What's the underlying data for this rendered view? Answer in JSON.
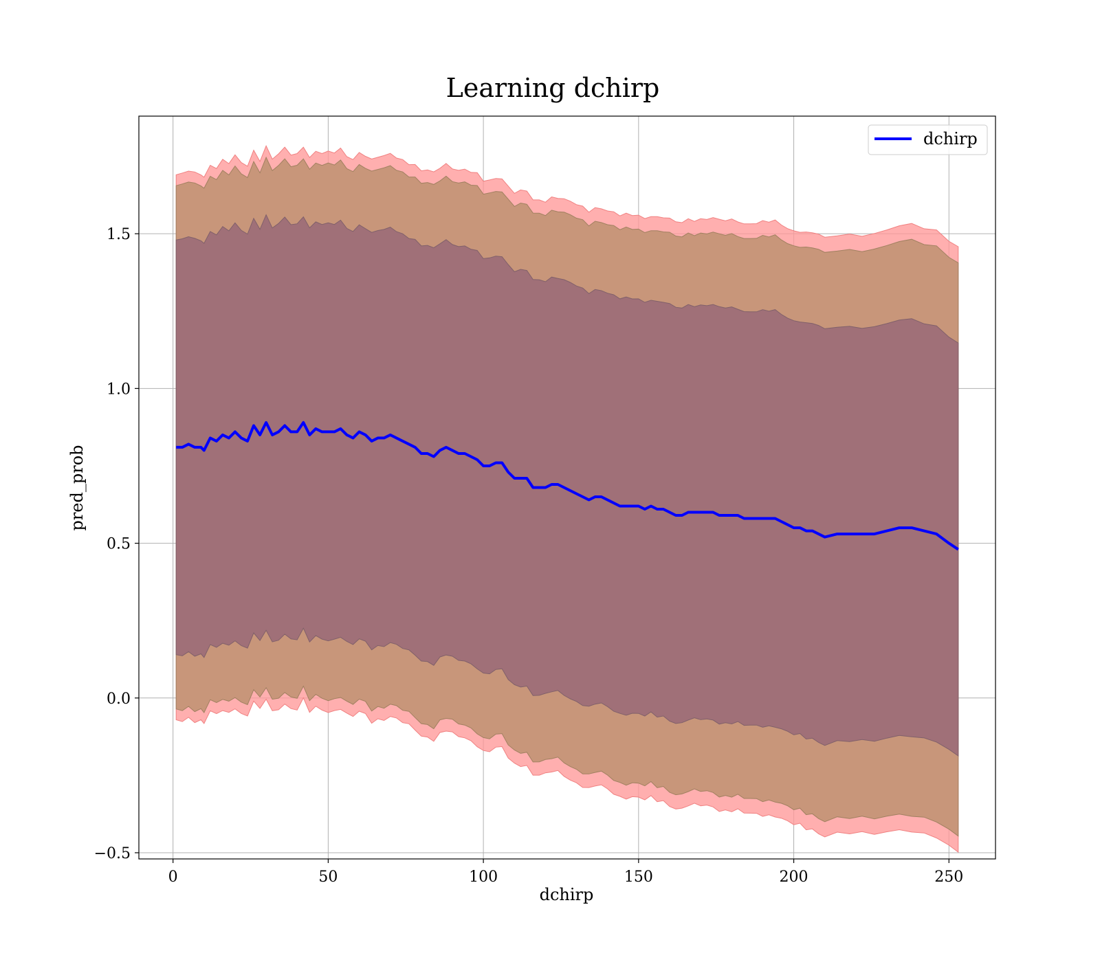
{
  "chart_data": {
    "type": "line",
    "title": "Learning dchirp",
    "xlabel": "dchirp",
    "ylabel": "pred_prob",
    "xlim": [
      -11,
      265
    ],
    "ylim": [
      -0.52,
      1.88
    ],
    "xticks": [
      0,
      50,
      100,
      150,
      200,
      250
    ],
    "xtick_labels": [
      "0",
      "50",
      "100",
      "150",
      "200",
      "250"
    ],
    "yticks": [
      -0.5,
      0.0,
      0.5,
      1.0,
      1.5
    ],
    "ytick_labels": [
      "−0.5",
      "0.0",
      "0.5",
      "1.0",
      "1.5"
    ],
    "grid": true,
    "legend": {
      "position": "top-right",
      "entries": [
        "dchirp"
      ]
    },
    "colors": {
      "line": "#0000ff",
      "band_outer": "#ff9999",
      "band_middle": "#c8967a",
      "band_inner": "#a07078",
      "grid": "#b0b0b0"
    },
    "series": [
      {
        "name": "dchirp",
        "x": [
          1,
          3,
          5,
          7,
          9,
          10,
          12,
          14,
          16,
          18,
          20,
          22,
          24,
          26,
          28,
          30,
          32,
          34,
          36,
          38,
          40,
          42,
          44,
          46,
          48,
          50,
          52,
          54,
          56,
          58,
          60,
          62,
          64,
          66,
          68,
          70,
          72,
          74,
          76,
          78,
          80,
          82,
          84,
          86,
          88,
          90,
          92,
          94,
          96,
          98,
          100,
          102,
          104,
          106,
          108,
          110,
          112,
          114,
          116,
          118,
          120,
          122,
          124,
          126,
          128,
          130,
          132,
          134,
          136,
          138,
          140,
          142,
          144,
          146,
          148,
          150,
          152,
          154,
          156,
          158,
          160,
          162,
          164,
          166,
          168,
          170,
          172,
          174,
          176,
          178,
          180,
          182,
          184,
          186,
          188,
          190,
          192,
          194,
          196,
          198,
          200,
          202,
          204,
          206,
          208,
          210,
          214,
          218,
          222,
          226,
          230,
          234,
          238,
          242,
          246,
          250,
          253
        ],
        "y": [
          0.81,
          0.81,
          0.82,
          0.81,
          0.81,
          0.8,
          0.84,
          0.83,
          0.85,
          0.84,
          0.86,
          0.84,
          0.83,
          0.88,
          0.85,
          0.89,
          0.85,
          0.86,
          0.88,
          0.86,
          0.86,
          0.89,
          0.85,
          0.87,
          0.86,
          0.86,
          0.86,
          0.87,
          0.85,
          0.84,
          0.86,
          0.85,
          0.83,
          0.84,
          0.84,
          0.85,
          0.84,
          0.83,
          0.82,
          0.81,
          0.79,
          0.79,
          0.78,
          0.8,
          0.81,
          0.8,
          0.79,
          0.79,
          0.78,
          0.77,
          0.75,
          0.75,
          0.76,
          0.76,
          0.73,
          0.71,
          0.71,
          0.71,
          0.68,
          0.68,
          0.68,
          0.69,
          0.69,
          0.68,
          0.67,
          0.66,
          0.65,
          0.64,
          0.65,
          0.65,
          0.64,
          0.63,
          0.62,
          0.62,
          0.62,
          0.62,
          0.61,
          0.62,
          0.61,
          0.61,
          0.6,
          0.59,
          0.59,
          0.6,
          0.6,
          0.6,
          0.6,
          0.6,
          0.59,
          0.59,
          0.59,
          0.59,
          0.58,
          0.58,
          0.58,
          0.58,
          0.58,
          0.58,
          0.57,
          0.56,
          0.55,
          0.55,
          0.54,
          0.54,
          0.53,
          0.52,
          0.53,
          0.53,
          0.53,
          0.53,
          0.54,
          0.55,
          0.55,
          0.54,
          0.53,
          0.5,
          0.48
        ]
      }
    ],
    "bands": {
      "inner_halfwidth": [
        0.67,
        0.67,
        0.67,
        0.67,
        0.67,
        0.67,
        0.67,
        0.67,
        0.67,
        0.67,
        0.67,
        0.67,
        0.67,
        0.67,
        0.67,
        0.67,
        0.67,
        0.67,
        0.67,
        0.67,
        0.67,
        0.67,
        0.67,
        0.67,
        0.67,
        0.67,
        0.67,
        0.67,
        0.67,
        0.67,
        0.67,
        0.67,
        0.67,
        0.67,
        0.67,
        0.67,
        0.67,
        0.67,
        0.67,
        0.67,
        0.67,
        0.67,
        0.67,
        0.67,
        0.67,
        0.67,
        0.67,
        0.67,
        0.67,
        0.67,
        0.67,
        0.67,
        0.67,
        0.67,
        0.67,
        0.67,
        0.67,
        0.67,
        0.67,
        0.67,
        0.67,
        0.67,
        0.67,
        0.67,
        0.67,
        0.67,
        0.67,
        0.67,
        0.67,
        0.67,
        0.67,
        0.67,
        0.67,
        0.67,
        0.67,
        0.67,
        0.67,
        0.67,
        0.67,
        0.67,
        0.67,
        0.67,
        0.67,
        0.67,
        0.67,
        0.67,
        0.67,
        0.67,
        0.67,
        0.67,
        0.67,
        0.67,
        0.67,
        0.67,
        0.67,
        0.67,
        0.67,
        0.67,
        0.67,
        0.67,
        0.67,
        0.67,
        0.67,
        0.67,
        0.67,
        0.67,
        0.67,
        0.67,
        0.67,
        0.67,
        0.67,
        0.67,
        0.67,
        0.67,
        0.67,
        0.67,
        0.67
      ],
      "middle_halfwidth": 0.845,
      "outer_halfwidth": 0.88
    }
  }
}
